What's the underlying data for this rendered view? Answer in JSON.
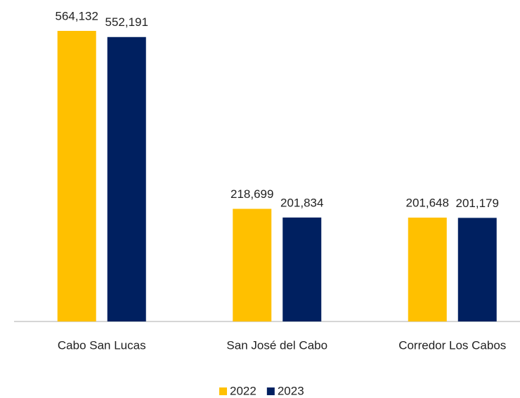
{
  "chart_data": {
    "type": "bar",
    "categories": [
      "Cabo San Lucas",
      "San José del Cabo",
      "Corredor Los Cabos"
    ],
    "series": [
      {
        "name": "2022",
        "color": "#FFC000",
        "values": [
          564132,
          218699,
          201648
        ],
        "value_labels": [
          "564,132",
          "218,699",
          "201,648"
        ]
      },
      {
        "name": "2023",
        "color": "#002060",
        "values": [
          552191,
          201834,
          201179
        ],
        "value_labels": [
          "552,191",
          "201,834",
          "201,179"
        ]
      }
    ]
  }
}
